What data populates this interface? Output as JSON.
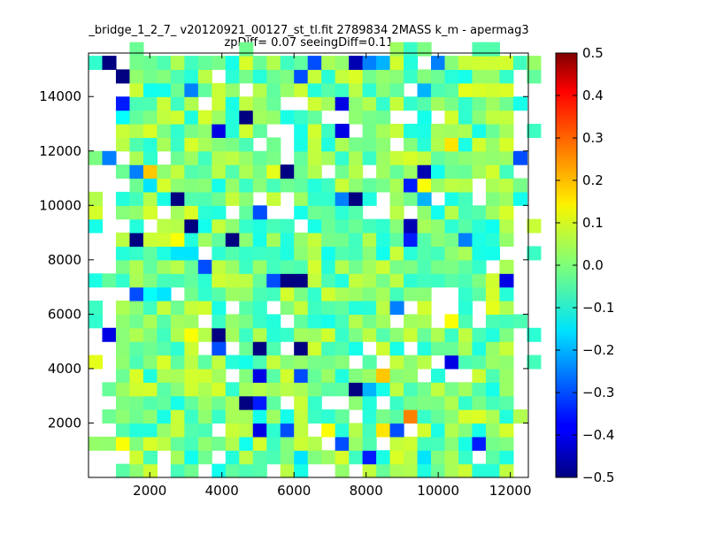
{
  "chart_data": {
    "type": "heatmap",
    "title": "_bridge_1_2_7_ v20120921_00127_st_tl.fit 2789834 2MASS k_m - apermag3",
    "subtitle": "zpDiff= 0.07 seeingDiff=0.11",
    "xlabel": "",
    "ylabel": "",
    "xlim": [
      300,
      12500
    ],
    "ylim": [
      0,
      15600
    ],
    "xticks": [
      "2000",
      "4000",
      "6000",
      "8000",
      "10000",
      "12000"
    ],
    "yticks": [
      "2000",
      "4000",
      "6000",
      "8000",
      "10000",
      "12000",
      "14000"
    ],
    "bin_size": [
      380,
      500
    ],
    "grid": false,
    "colorbar": {
      "colormap": "jet",
      "vmin": -0.5,
      "vmax": 0.5,
      "ticks": [
        "0.5",
        "0.4",
        "0.3",
        "0.2",
        "0.1",
        "0.0",
        "−0.1",
        "−0.2",
        "−0.3",
        "−0.4",
        "−0.5"
      ]
    },
    "value_note": "Cells are estimated from the colour of each bin; a dense grid of mostly near-zero values.",
    "cells": [
      {
        "x": 700,
        "y": 14800,
        "v": -0.5
      },
      {
        "x": 1100,
        "y": 14300,
        "v": -0.5
      },
      {
        "x": 1100,
        "y": 13300,
        "v": -0.35
      },
      {
        "x": 1100,
        "y": 12800,
        "v": -0.12
      },
      {
        "x": 2000,
        "y": 14800,
        "v": -0.02
      },
      {
        "x": 2000,
        "y": 13300,
        "v": -0.05
      },
      {
        "x": 2400,
        "y": 14300,
        "v": -0.05
      },
      {
        "x": 2800,
        "y": 13800,
        "v": -0.25
      },
      {
        "x": 4300,
        "y": 12800,
        "v": -0.5
      },
      {
        "x": 3900,
        "y": 12300,
        "v": -0.4
      },
      {
        "x": 4300,
        "y": 12300,
        "v": 0.08
      },
      {
        "x": 5900,
        "y": 14300,
        "v": -0.3
      },
      {
        "x": 6300,
        "y": 15100,
        "v": -0.3
      },
      {
        "x": 7500,
        "y": 14800,
        "v": -0.45
      },
      {
        "x": 7800,
        "y": 14800,
        "v": -0.25
      },
      {
        "x": 8300,
        "y": 14800,
        "v": -0.2
      },
      {
        "x": 8700,
        "y": 14800,
        "v": 0.08
      },
      {
        "x": 9500,
        "y": 13800,
        "v": -0.2
      },
      {
        "x": 10400,
        "y": 13800,
        "v": 0.1
      },
      {
        "x": 11200,
        "y": 13800,
        "v": 0.08
      },
      {
        "x": 9800,
        "y": 15100,
        "v": -0.25
      },
      {
        "x": 7100,
        "y": 13300,
        "v": -0.4
      },
      {
        "x": 7100,
        "y": 12300,
        "v": -0.4
      },
      {
        "x": 6300,
        "y": 12300,
        "v": 0.08
      },
      {
        "x": 9500,
        "y": 12300,
        "v": -0.1
      },
      {
        "x": 10000,
        "y": 11800,
        "v": 0.15
      },
      {
        "x": 10800,
        "y": 11800,
        "v": 0.08
      },
      {
        "x": 700,
        "y": 11300,
        "v": -0.25
      },
      {
        "x": 12000,
        "y": 11300,
        "v": -0.3
      },
      {
        "x": 1500,
        "y": 10800,
        "v": -0.25
      },
      {
        "x": 1900,
        "y": 10800,
        "v": 0.18
      },
      {
        "x": 5800,
        "y": 10800,
        "v": -0.5
      },
      {
        "x": 5100,
        "y": 10800,
        "v": 0.1
      },
      {
        "x": 9600,
        "y": 10800,
        "v": -0.45
      },
      {
        "x": 9200,
        "y": 10300,
        "v": -0.35
      },
      {
        "x": 9600,
        "y": 10300,
        "v": 0.12
      },
      {
        "x": 2000,
        "y": 10300,
        "v": -0.15
      },
      {
        "x": 300,
        "y": 9800,
        "v": 0.05
      },
      {
        "x": 2400,
        "y": 9800,
        "v": -0.5
      },
      {
        "x": 7000,
        "y": 9800,
        "v": -0.25
      },
      {
        "x": 7400,
        "y": 9800,
        "v": -0.5
      },
      {
        "x": 9600,
        "y": 9800,
        "v": -0.2
      },
      {
        "x": 4800,
        "y": 9300,
        "v": -0.3
      },
      {
        "x": 2800,
        "y": 8800,
        "v": -0.5
      },
      {
        "x": 9200,
        "y": 8800,
        "v": -0.45
      },
      {
        "x": 11600,
        "y": 8800,
        "v": 0.05
      },
      {
        "x": 1600,
        "y": 8300,
        "v": -0.5
      },
      {
        "x": 2400,
        "y": 8300,
        "v": 0.12
      },
      {
        "x": 4100,
        "y": 8300,
        "v": -0.5
      },
      {
        "x": 9200,
        "y": 8300,
        "v": -0.35
      },
      {
        "x": 10400,
        "y": 8300,
        "v": -0.25
      },
      {
        "x": 11100,
        "y": 8300,
        "v": -0.1
      },
      {
        "x": 2700,
        "y": 7800,
        "v": -0.15
      },
      {
        "x": 3100,
        "y": 7800,
        "v": -0.15
      },
      {
        "x": 3500,
        "y": 7300,
        "v": -0.3
      },
      {
        "x": 5100,
        "y": 6800,
        "v": -0.3
      },
      {
        "x": 5500,
        "y": 6800,
        "v": -0.5
      },
      {
        "x": 5900,
        "y": 6800,
        "v": -0.5
      },
      {
        "x": 11600,
        "y": 6800,
        "v": -0.4
      },
      {
        "x": 1500,
        "y": 6300,
        "v": -0.3
      },
      {
        "x": 1900,
        "y": 6300,
        "v": -0.12
      },
      {
        "x": 2300,
        "y": 6300,
        "v": -0.15
      },
      {
        "x": 8700,
        "y": 5800,
        "v": -0.25
      },
      {
        "x": 9600,
        "y": 5800,
        "v": 0.08
      },
      {
        "x": 11200,
        "y": 5800,
        "v": 0.1
      },
      {
        "x": 10000,
        "y": 5300,
        "v": 0.12
      },
      {
        "x": 12000,
        "y": 5300,
        "v": -0.05
      },
      {
        "x": 700,
        "y": 4800,
        "v": -0.4
      },
      {
        "x": 2800,
        "y": 4800,
        "v": 0.12
      },
      {
        "x": 3900,
        "y": 4800,
        "v": -0.5
      },
      {
        "x": 3600,
        "y": 4300,
        "v": -0.5
      },
      {
        "x": 3900,
        "y": 4300,
        "v": -0.3
      },
      {
        "x": 4800,
        "y": 4300,
        "v": -0.5
      },
      {
        "x": 5900,
        "y": 4300,
        "v": -0.5
      },
      {
        "x": 6300,
        "y": 4300,
        "v": 0.08
      },
      {
        "x": 300,
        "y": 3800,
        "v": 0.1
      },
      {
        "x": 10000,
        "y": 3800,
        "v": -0.4
      },
      {
        "x": 4800,
        "y": 3300,
        "v": -0.4
      },
      {
        "x": 5900,
        "y": 3300,
        "v": -0.3
      },
      {
        "x": 8300,
        "y": 3300,
        "v": 0.18
      },
      {
        "x": 7400,
        "y": 2800,
        "v": -0.5
      },
      {
        "x": 7900,
        "y": 2800,
        "v": -0.2
      },
      {
        "x": 4400,
        "y": 2300,
        "v": -0.5
      },
      {
        "x": 4800,
        "y": 2300,
        "v": -0.35
      },
      {
        "x": 9200,
        "y": 1800,
        "v": 0.25
      },
      {
        "x": 4800,
        "y": 1300,
        "v": -0.4
      },
      {
        "x": 5500,
        "y": 1300,
        "v": -0.3
      },
      {
        "x": 8300,
        "y": 1300,
        "v": 0.15
      },
      {
        "x": 8700,
        "y": 1300,
        "v": -0.3
      },
      {
        "x": 6700,
        "y": 1300,
        "v": 0.12
      },
      {
        "x": 1100,
        "y": 800,
        "v": 0.12
      },
      {
        "x": 7000,
        "y": 800,
        "v": -0.3
      },
      {
        "x": 10800,
        "y": 800,
        "v": -0.35
      },
      {
        "x": 5900,
        "y": 300,
        "v": -0.15
      },
      {
        "x": 7800,
        "y": 300,
        "v": -0.35
      },
      {
        "x": 9600,
        "y": 300,
        "v": -0.15
      },
      {
        "x": 11600,
        "y": 800,
        "v": 0.0
      }
    ]
  }
}
